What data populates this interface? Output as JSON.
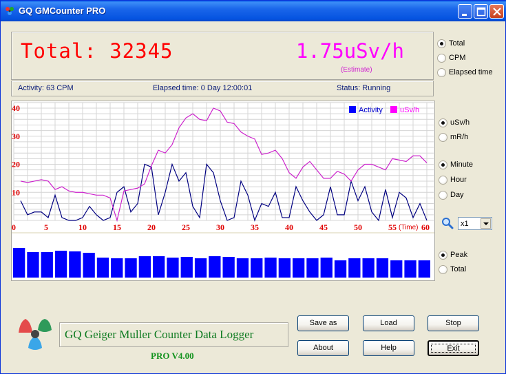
{
  "window": {
    "title": "GQ GMCounter PRO",
    "controls": [
      "minimize",
      "maximize",
      "close"
    ]
  },
  "readout": {
    "total_label": "Total: 32345",
    "dose_rate": "1.75uSv/h",
    "estimate_note": "(Estimate)",
    "total_color": "#ff0000",
    "dose_color": "#ff00ff"
  },
  "status": {
    "activity": "Activity: 63 CPM",
    "elapsed": "Elapsed time: 0 Day 12:00:01",
    "state": "Status: Running"
  },
  "display_mode": {
    "options": [
      {
        "label": "Total",
        "checked": true
      },
      {
        "label": "CPM",
        "checked": false
      },
      {
        "label": "Elapsed time",
        "checked": false
      }
    ]
  },
  "unit": {
    "options": [
      {
        "label": "uSv/h",
        "checked": true
      },
      {
        "label": "mR/h",
        "checked": false
      }
    ]
  },
  "time_scale": {
    "options": [
      {
        "label": "Minute",
        "checked": true
      },
      {
        "label": "Hour",
        "checked": false
      },
      {
        "label": "Day",
        "checked": false
      }
    ]
  },
  "zoom": {
    "icon": "magnifier-icon",
    "selected": "x1"
  },
  "bar_mode": {
    "options": [
      {
        "label": "Peak",
        "checked": true
      },
      {
        "label": "Total",
        "checked": false
      }
    ]
  },
  "chart_data": [
    {
      "type": "line",
      "title": "",
      "xlabel": "(Time)",
      "ylabel": "",
      "xlim": [
        0,
        60
      ],
      "ylim": [
        0,
        40
      ],
      "x_ticks": [
        0,
        5,
        10,
        15,
        20,
        25,
        30,
        35,
        40,
        45,
        50,
        55,
        60
      ],
      "y_ticks": [
        10,
        20,
        30,
        40
      ],
      "grid": true,
      "legend_position": "top-right",
      "x": [
        1,
        2,
        3,
        4,
        5,
        6,
        7,
        8,
        9,
        10,
        11,
        12,
        13,
        14,
        15,
        16,
        17,
        18,
        19,
        20,
        21,
        22,
        23,
        24,
        25,
        26,
        27,
        28,
        29,
        30,
        31,
        32,
        33,
        34,
        35,
        36,
        37,
        38,
        39,
        40,
        41,
        42,
        43,
        44,
        45,
        46,
        47,
        48,
        49,
        50,
        51,
        52,
        53,
        54,
        55,
        56,
        57,
        58,
        59,
        60
      ],
      "series": [
        {
          "name": "Activity",
          "color": "#000080",
          "values": [
            7,
            2,
            3,
            3,
            1,
            9,
            1,
            0,
            0,
            1,
            5,
            2,
            0,
            1,
            10,
            12,
            3,
            6,
            20,
            19,
            2,
            10,
            20,
            14,
            17,
            5,
            1,
            20,
            17,
            7,
            0,
            1,
            14,
            9,
            0,
            6,
            5,
            10,
            1,
            1,
            12,
            7,
            3,
            0,
            2,
            12,
            2,
            2,
            14,
            7,
            12,
            3,
            0,
            11,
            1,
            10,
            8,
            1,
            6,
            0
          ]
        },
        {
          "name": "uSv/h",
          "color": "#cc22cc",
          "values": [
            14,
            13.5,
            14,
            14.5,
            14,
            11,
            12,
            10.5,
            10,
            10,
            9.5,
            9,
            9,
            8,
            0,
            10.5,
            11,
            11.5,
            13,
            19.5,
            25,
            24,
            27,
            33,
            36.5,
            38,
            36,
            35.5,
            40,
            39,
            35,
            34.5,
            31.5,
            30,
            29,
            23.5,
            24,
            25,
            22,
            17,
            15,
            19,
            21,
            18,
            15,
            15,
            17.5,
            16.5,
            14,
            18,
            20,
            20,
            19,
            18,
            22,
            21.5,
            21,
            23,
            23,
            20.5
          ]
        }
      ],
      "legend": [
        "Activity",
        "uSv/h"
      ]
    },
    {
      "type": "bar",
      "title": "",
      "series": [
        {
          "name": "Peak",
          "color": "#0000ff",
          "values": [
            43,
            37,
            37,
            39,
            38,
            36,
            29,
            28,
            28,
            31,
            31,
            29,
            30,
            28,
            31,
            30,
            28,
            28,
            29,
            28,
            28,
            28,
            29,
            25,
            28,
            28,
            28,
            25,
            25,
            25
          ]
        }
      ]
    }
  ],
  "branding": {
    "logo": "tri-lobe-logo",
    "name": "GQ Geiger Muller Counter Data Logger",
    "version": "PRO V4.00"
  },
  "buttons": {
    "save_as": "Save as",
    "load": "Load",
    "stop": "Stop",
    "about": "About",
    "help": "Help",
    "exit": "Exit"
  }
}
